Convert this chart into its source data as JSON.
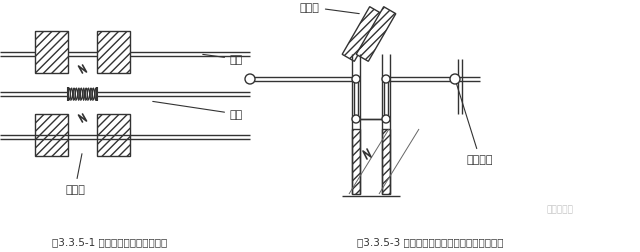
{
  "bg_color": "#ffffff",
  "line_color": "#333333",
  "caption1": "图3.3.5-1 在墙体两侧采用柔性连接",
  "caption2": "图3.3.5-3 在穿墙处做成方形补偿器，水平安装",
  "label_guandao": "管道",
  "label_ruanguan": "软管",
  "label_chenjiang1": "沉降缝",
  "label_chenjiang2": "沉降缝",
  "label_luowenwan": "螺纹弯头",
  "watermark": "易筑给排水",
  "caption_fontsize": 7.5,
  "label_fontsize": 8
}
